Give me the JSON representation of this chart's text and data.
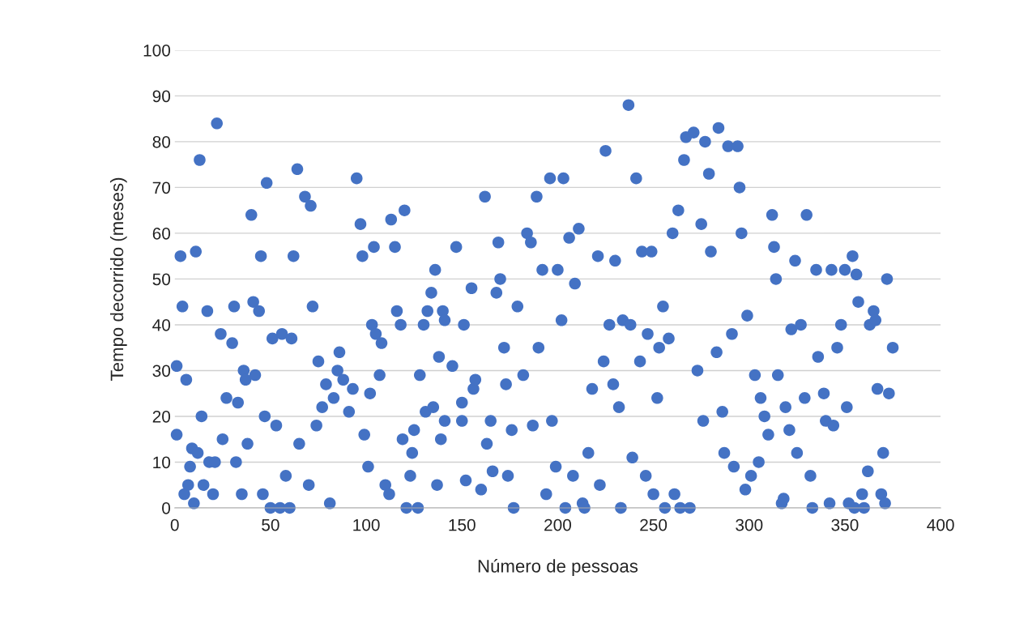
{
  "chart_data": {
    "type": "scatter",
    "xlabel": "Número de pessoas",
    "ylabel": "Tempo decorrido (meses)",
    "xlim": [
      0,
      400
    ],
    "xticks": [
      0,
      50,
      100,
      150,
      200,
      250,
      300,
      350,
      400
    ],
    "ylim": [
      0,
      100
    ],
    "yticks": [
      0,
      10,
      20,
      30,
      40,
      50,
      60,
      70,
      80,
      90,
      100
    ],
    "grid": "y",
    "marker": "circle",
    "series": [
      {
        "color": "#4472c4",
        "x": [
          1,
          1,
          3,
          4,
          5,
          6,
          7,
          8,
          9,
          10,
          11,
          12,
          13,
          14,
          15,
          17,
          18,
          20,
          21,
          22,
          24,
          25,
          27,
          30,
          31,
          32,
          33,
          35,
          36,
          37,
          38,
          40,
          41,
          42,
          44,
          45,
          46,
          47,
          48,
          50,
          51,
          53,
          55,
          56,
          58,
          60,
          61,
          62,
          64,
          65,
          68,
          70,
          71,
          72,
          74,
          75,
          77,
          79,
          81,
          83,
          85,
          86,
          88,
          91,
          93,
          95,
          97,
          98,
          99,
          101,
          102,
          103,
          104,
          105,
          107,
          108,
          110,
          112,
          113,
          115,
          116,
          118,
          119,
          120,
          121,
          123,
          124,
          125,
          127,
          128,
          130,
          131,
          132,
          134,
          135,
          136,
          137,
          138,
          139,
          140,
          141,
          141,
          145,
          147,
          150,
          150,
          151,
          152,
          155,
          156,
          157,
          160,
          162,
          163,
          165,
          166,
          168,
          169,
          170,
          172,
          173,
          174,
          176,
          177,
          179,
          182,
          184,
          186,
          187,
          189,
          190,
          192,
          194,
          196,
          197,
          199,
          200,
          202,
          203,
          204,
          206,
          208,
          209,
          211,
          213,
          214,
          216,
          218,
          221,
          222,
          224,
          225,
          227,
          229,
          230,
          232,
          233,
          234,
          237,
          238,
          239,
          241,
          243,
          244,
          246,
          247,
          249,
          250,
          252,
          253,
          255,
          256,
          258,
          260,
          261,
          263,
          264,
          266,
          267,
          269,
          271,
          273,
          275,
          276,
          277,
          279,
          280,
          283,
          284,
          286,
          287,
          289,
          291,
          292,
          294,
          295,
          296,
          298,
          299,
          301,
          303,
          305,
          306,
          308,
          310,
          312,
          313,
          314,
          315,
          317,
          318,
          319,
          321,
          322,
          324,
          325,
          327,
          329,
          330,
          332,
          333,
          335,
          336,
          339,
          340,
          342,
          343,
          344,
          346,
          348,
          350,
          351,
          352,
          354,
          355,
          356,
          357,
          359,
          360,
          362,
          363,
          365,
          366,
          367,
          369,
          370,
          371,
          372,
          373,
          375
        ],
        "values": [
          31,
          16,
          55,
          44,
          3,
          28,
          5,
          9,
          13,
          1,
          56,
          12,
          76,
          20,
          5,
          43,
          10,
          3,
          10,
          84,
          38,
          15,
          24,
          36,
          44,
          10,
          23,
          3,
          30,
          28,
          14,
          64,
          45,
          29,
          43,
          55,
          3,
          20,
          71,
          0,
          37,
          18,
          0,
          38,
          7,
          0,
          37,
          55,
          74,
          14,
          68,
          5,
          66,
          44,
          18,
          32,
          22,
          27,
          1,
          24,
          30,
          34,
          28,
          21,
          26,
          72,
          62,
          55,
          16,
          9,
          25,
          40,
          57,
          38,
          29,
          36,
          5,
          3,
          63,
          57,
          43,
          40,
          15,
          65,
          0,
          7,
          12,
          17,
          0,
          29,
          40,
          21,
          43,
          47,
          22,
          52,
          5,
          33,
          15,
          43,
          19,
          41,
          31,
          57,
          19,
          23,
          40,
          6,
          48,
          26,
          28,
          4,
          68,
          14,
          19,
          8,
          47,
          58,
          50,
          35,
          27,
          7,
          17,
          0,
          44,
          29,
          60,
          58,
          18,
          68,
          35,
          52,
          3,
          72,
          19,
          9,
          52,
          41,
          72,
          0,
          59,
          7,
          49,
          61,
          1,
          0,
          12,
          26,
          55,
          5,
          32,
          78,
          40,
          27,
          54,
          22,
          0,
          41,
          88,
          40,
          11,
          72,
          32,
          56,
          7,
          38,
          56,
          3,
          24,
          35,
          44,
          0,
          37,
          60,
          3,
          65,
          0,
          76,
          81,
          0,
          82,
          30,
          62,
          19,
          80,
          73,
          56,
          34,
          83,
          21,
          12,
          79,
          38,
          9,
          79,
          70,
          60,
          4,
          42,
          7,
          29,
          10,
          24,
          20,
          16,
          64,
          57,
          50,
          29,
          1,
          2,
          22,
          17,
          39,
          54,
          12,
          40,
          24,
          64,
          7,
          0,
          52,
          33,
          25,
          19,
          1,
          52,
          18,
          35,
          40,
          52,
          22,
          1,
          55,
          0,
          51,
          45,
          3,
          0,
          8,
          40,
          43,
          41,
          26,
          3,
          12,
          1,
          50,
          25,
          35
        ]
      }
    ]
  }
}
